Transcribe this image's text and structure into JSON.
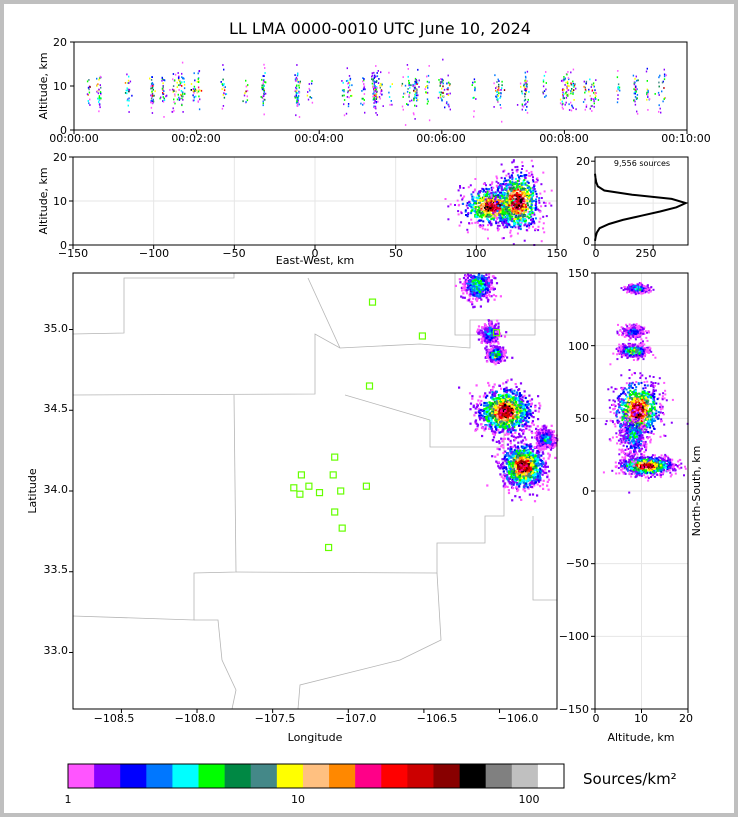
{
  "title": "LL LMA 0000-0010 UTC June 10, 2024",
  "colors": {
    "scale": [
      "#ff55ff",
      "#8800ff",
      "#0000ff",
      "#0077ff",
      "#00ffff",
      "#00ff00",
      "#008844",
      "#448888",
      "#ffff00",
      "#ffc080",
      "#ff8800",
      "#ff0088",
      "#ff0000",
      "#cc0000",
      "#880000",
      "#000000",
      "#808080",
      "#c0c0c0",
      "#ffffff"
    ],
    "station": "#66ff00"
  },
  "colorbar": {
    "label": "Sources/km²",
    "ticks": [
      "1",
      "10",
      "100"
    ]
  },
  "chart_data": [
    {
      "type": "scatter",
      "name": "altitude-time",
      "ylabel": "Altitude, km",
      "ylim": [
        0,
        20
      ],
      "yticks": [
        "0",
        "10",
        "20"
      ],
      "xticks": [
        "00:00:00",
        "00:02:00",
        "00:04:00",
        "00:06:00",
        "00:08:00",
        "00:10:00"
      ],
      "xlim_seconds": [
        0,
        600
      ]
    },
    {
      "type": "heatmap",
      "name": "altitude-east-west",
      "xlabel": "East-West, km",
      "ylabel": "Altitude, km",
      "xlim": [
        -150,
        150
      ],
      "ylim": [
        0,
        20
      ],
      "xticks": [
        "−150",
        "−100",
        "−50",
        "0",
        "50",
        "100",
        "150"
      ],
      "yticks": [
        "0",
        "10",
        "20"
      ],
      "clusters": [
        {
          "x": 110,
          "z": 9,
          "sx": 10,
          "sz": 2.2,
          "peak": 1.0
        },
        {
          "x": 125,
          "z": 10,
          "sx": 7,
          "sz": 3.5,
          "peak": 1.0
        }
      ]
    },
    {
      "type": "line",
      "name": "altitude-histogram",
      "annotation": "9,556 sources",
      "xlim": [
        0,
        400
      ],
      "ylim": [
        0,
        21
      ],
      "xticks": [
        "0",
        "250"
      ],
      "yticks": [
        "0",
        "10",
        "20"
      ],
      "profile": [
        [
          0,
          1
        ],
        [
          3,
          2
        ],
        [
          8,
          3
        ],
        [
          20,
          4
        ],
        [
          60,
          5
        ],
        [
          120,
          6
        ],
        [
          200,
          7
        ],
        [
          280,
          8
        ],
        [
          350,
          9
        ],
        [
          390,
          10
        ],
        [
          330,
          11
        ],
        [
          160,
          12
        ],
        [
          40,
          13
        ],
        [
          12,
          14
        ],
        [
          5,
          15
        ],
        [
          2,
          16
        ],
        [
          0,
          17
        ]
      ]
    },
    {
      "type": "heatmap",
      "name": "plan-view",
      "xlabel": "Longitude",
      "ylabel": "Latitude",
      "xlim": [
        -108.82,
        -105.62
      ],
      "ylim": [
        32.65,
        35.35
      ],
      "xticks": [
        "−108.5",
        "−108.0",
        "−107.5",
        "−107.0",
        "−106.5",
        "−106.0"
      ],
      "yticks": [
        "33.0",
        "33.5",
        "34.0",
        "34.5",
        "35.0"
      ],
      "clusters": [
        {
          "lon": -105.97,
          "lat": 34.5,
          "slon": 0.09,
          "slat": 0.07,
          "peak": 1.0
        },
        {
          "lon": -105.85,
          "lat": 34.16,
          "slon": 0.07,
          "slat": 0.07,
          "peak": 1.0
        },
        {
          "lon": -106.03,
          "lat": 34.85,
          "slon": 0.025,
          "slat": 0.02,
          "peak": 0.7
        },
        {
          "lon": -106.15,
          "lat": 35.28,
          "slon": 0.05,
          "slat": 0.05,
          "peak": 0.45
        },
        {
          "lon": -106.07,
          "lat": 34.98,
          "slon": 0.03,
          "slat": 0.03,
          "peak": 0.35
        },
        {
          "lon": -105.7,
          "lat": 34.33,
          "slon": 0.03,
          "slat": 0.03,
          "peak": 0.35
        }
      ],
      "stations": [
        [
          -106.84,
          35.17
        ],
        [
          -106.51,
          34.96
        ],
        [
          -106.86,
          34.65
        ],
        [
          -106.02,
          34.98
        ],
        [
          -107.09,
          34.21
        ],
        [
          -107.1,
          34.1
        ],
        [
          -107.31,
          34.1
        ],
        [
          -107.26,
          34.03
        ],
        [
          -107.36,
          34.02
        ],
        [
          -107.32,
          33.98
        ],
        [
          -107.19,
          33.99
        ],
        [
          -107.05,
          34.0
        ],
        [
          -106.88,
          34.03
        ],
        [
          -107.09,
          33.87
        ],
        [
          -107.04,
          33.77
        ],
        [
          -107.13,
          33.65
        ]
      ]
    },
    {
      "type": "heatmap",
      "name": "north-south-altitude",
      "xlabel": "Altitude, km",
      "ylabel": "North-South, km",
      "xlim": [
        0,
        20
      ],
      "ylim": [
        -150,
        150
      ],
      "xticks": [
        "0",
        "10",
        "20"
      ],
      "yticks": [
        "−150",
        "−100",
        "−50",
        "0",
        "50",
        "100",
        "150"
      ],
      "clusters": [
        {
          "z": 9,
          "y": 56,
          "sz": 2.5,
          "sy": 10,
          "peak": 1.0
        },
        {
          "z": 11,
          "y": 18,
          "sz": 2.8,
          "sy": 3,
          "peak": 1.0
        },
        {
          "z": 8,
          "y": 97,
          "sz": 1.5,
          "sy": 2,
          "peak": 0.7
        },
        {
          "z": 8,
          "y": 110,
          "sz": 1.2,
          "sy": 2,
          "peak": 0.3
        },
        {
          "z": 9,
          "y": 140,
          "sz": 1.2,
          "sy": 1.5,
          "peak": 0.4
        },
        {
          "z": 8,
          "y": 38,
          "sz": 1.5,
          "sy": 8,
          "peak": 0.35
        }
      ]
    }
  ]
}
